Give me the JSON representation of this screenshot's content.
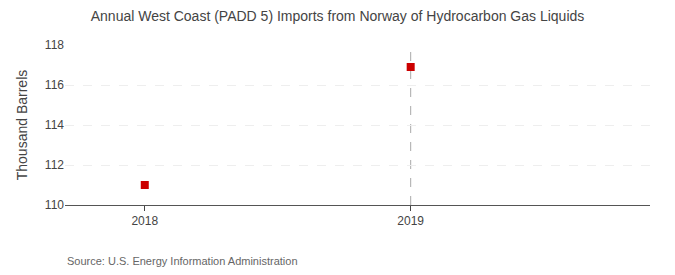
{
  "chart_data": {
    "type": "scatter",
    "title": "Annual West Coast (PADD 5) Imports from Norway of Hydrocarbon Gas Liquids",
    "ylabel": "Thousand Barrels",
    "source": "Source: U.S. Energy Information Administration",
    "x": [
      2018,
      2019
    ],
    "values": [
      111.0,
      116.9
    ],
    "color": "#cc0000",
    "marker": "square",
    "xlim": [
      2017.7,
      2019.9
    ],
    "ylim": [
      110,
      118
    ],
    "xticks": [
      2018,
      2019
    ],
    "yticks": [
      110,
      112,
      114,
      116,
      118
    ],
    "vlines": [
      2019
    ],
    "grid": true
  }
}
